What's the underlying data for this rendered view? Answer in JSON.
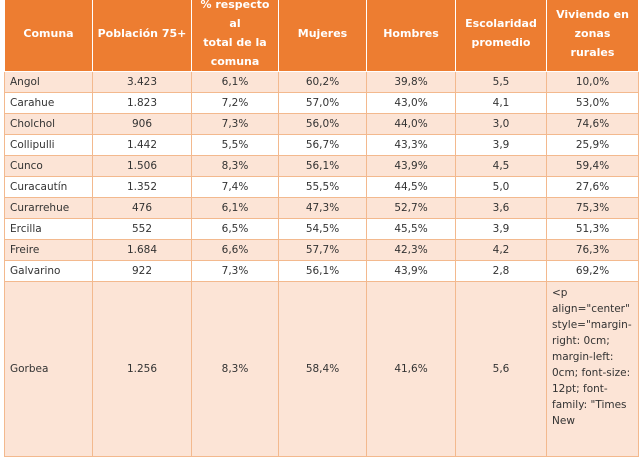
{
  "headers": [
    [
      "Comuna"
    ],
    [
      "Población 75+"
    ],
    [
      "% respecto al",
      "total de la",
      "comuna"
    ],
    [
      "Mujeres"
    ],
    [
      "Hombres"
    ],
    [
      "Escolaridad",
      "promedio"
    ],
    [
      "Viviendo en",
      "zonas rurales"
    ]
  ],
  "rows": [
    {
      "comuna": "Angol",
      "poblacion": "3.423",
      "porcentaje": "6,1%",
      "mujeres": "60,2%",
      "hombres": "39,8%",
      "escolaridad": "5,5",
      "rural": "10,0%"
    },
    {
      "comuna": "Carahue",
      "poblacion": "1.823",
      "porcentaje": "7,2%",
      "mujeres": "57,0%",
      "hombres": "43,0%",
      "escolaridad": "4,1",
      "rural": "53,0%"
    },
    {
      "comuna": "Cholchol",
      "poblacion": "906",
      "porcentaje": "7,3%",
      "mujeres": "56,0%",
      "hombres": "44,0%",
      "escolaridad": "3,0",
      "rural": "74,6%"
    },
    {
      "comuna": "Collipulli",
      "poblacion": "1.442",
      "porcentaje": "5,5%",
      "mujeres": "56,7%",
      "hombres": "43,3%",
      "escolaridad": "3,9",
      "rural": "25,9%"
    },
    {
      "comuna": "Cunco",
      "poblacion": "1.506",
      "porcentaje": "8,3%",
      "mujeres": "56,1%",
      "hombres": "43,9%",
      "escolaridad": "4,5",
      "rural": "59,4%"
    },
    {
      "comuna": "Curacautín",
      "poblacion": "1.352",
      "porcentaje": "7,4%",
      "mujeres": "55,5%",
      "hombres": "44,5%",
      "escolaridad": "5,0",
      "rural": "27,6%"
    },
    {
      "comuna": "Curarrehue",
      "poblacion": "476",
      "porcentaje": "6,1%",
      "mujeres": "47,3%",
      "hombres": "52,7%",
      "escolaridad": "3,6",
      "rural": "75,3%"
    },
    {
      "comuna": "Ercilla",
      "poblacion": "552",
      "porcentaje": "6,5%",
      "mujeres": "54,5%",
      "hombres": "45,5%",
      "escolaridad": "3,9",
      "rural": "51,3%"
    },
    {
      "comuna": "Freire",
      "poblacion": "1.684",
      "porcentaje": "6,6%",
      "mujeres": "57,7%",
      "hombres": "42,3%",
      "escolaridad": "4,2",
      "rural": "76,3%"
    },
    {
      "comuna": "Galvarino",
      "poblacion": "922",
      "porcentaje": "7,3%",
      "mujeres": "56,1%",
      "hombres": "43,9%",
      "escolaridad": "2,8",
      "rural": "69,2%"
    },
    {
      "comuna": "Gorbea",
      "poblacion": "1.256",
      "porcentaje": "8,3%",
      "mujeres": "58,4%",
      "hombres": "41,6%",
      "escolaridad": "5,6",
      "rural": "<p align=\"center\" style=\"margin-right: 0cm; margin-left: 0cm; font-size: 12pt; font-family: \"Times New"
    }
  ],
  "colors": {
    "header_bg": "#ed7d31",
    "header_text": "#ffffff",
    "row_alt": "#fce4d6",
    "row_plain": "#ffffff",
    "border": "#f3b98e"
  }
}
